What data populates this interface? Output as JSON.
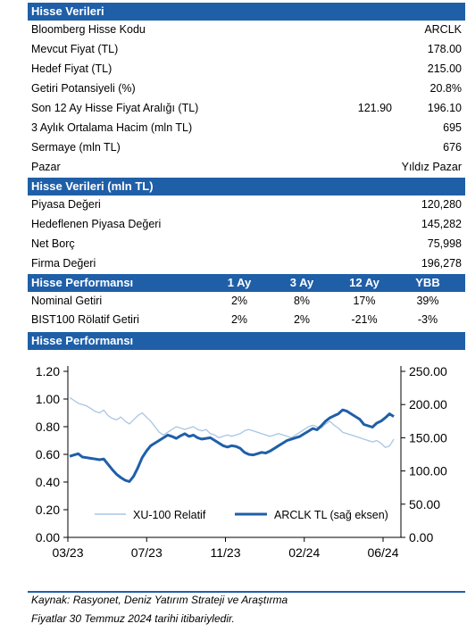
{
  "section1": {
    "title": "Hisse Verileri",
    "rows": [
      {
        "label": "Bloomberg Hisse Kodu",
        "value": "ARCLK"
      },
      {
        "label": "Mevcut Fiyat (TL)",
        "value": "178.00"
      },
      {
        "label": "Hedef Fiyat (TL)",
        "value": "215.00"
      },
      {
        "label": "Getiri Potansiyeli (%)",
        "value": "20.8%"
      },
      {
        "label": "Son 12 Ay Hisse Fiyat Aralığı (TL)",
        "low": "121.90",
        "value": "196.10"
      },
      {
        "label": "3 Aylık Ortalama Hacim (mln TL)",
        "value": "695"
      },
      {
        "label": "Sermaye (mln TL)",
        "value": "676"
      },
      {
        "label": "Pazar",
        "value": "Yıldız Pazar"
      }
    ]
  },
  "section2": {
    "title": "Hisse Verileri (mln TL)",
    "rows": [
      {
        "label": "Piyasa Değeri",
        "value": "120,280"
      },
      {
        "label": "Hedeflenen Piyasa Değeri",
        "value": "145,282"
      },
      {
        "label": "Net Borç",
        "value": "75,998"
      },
      {
        "label": "Firma Değeri",
        "value": "196,278"
      }
    ]
  },
  "section3": {
    "title": "Hisse Performansı",
    "columns": [
      "1 Ay",
      "3 Ay",
      "12 Ay",
      "YBB"
    ],
    "rows": [
      {
        "label": "Nominal Getiri",
        "values": [
          "2%",
          "8%",
          "17%",
          "39%"
        ]
      },
      {
        "label": "BIST100 Rölatif Getiri",
        "values": [
          "2%",
          "2%",
          "-21%",
          "-3%"
        ]
      }
    ]
  },
  "section4": {
    "title": "Hisse Performansı"
  },
  "source": {
    "line1": "Kaynak: Rasyonet, Deniz Yatırım Strateji ve Araştırma",
    "line2": "Fiyatlar 30 Temmuz 2024 tarihi itibariyledir."
  },
  "colors": {
    "header": "#1f5fa8",
    "relative_line": "#a9c6e3",
    "price_line": "#1f5fa8"
  },
  "chart_data": {
    "type": "line",
    "x_tick_labels": [
      "03/23",
      "07/23",
      "11/23",
      "02/24",
      "06/24"
    ],
    "y_left_ticks": [
      "0.00",
      "0.20",
      "0.40",
      "0.60",
      "0.80",
      "1.00",
      "1.20"
    ],
    "y_right_ticks": [
      "0.00",
      "50.00",
      "100.00",
      "150.00",
      "200.00",
      "250.00"
    ],
    "ylim_left": [
      0,
      1.2
    ],
    "ylim_right": [
      0,
      250
    ],
    "legend_position": "bottom",
    "series": [
      {
        "name": "XU-100 Relatif",
        "axis": "left",
        "color": "#a9c6e3",
        "values": [
          1.01,
          0.99,
          0.97,
          0.96,
          0.95,
          0.93,
          0.91,
          0.9,
          0.92,
          0.88,
          0.86,
          0.85,
          0.87,
          0.84,
          0.82,
          0.85,
          0.88,
          0.9,
          0.87,
          0.84,
          0.8,
          0.76,
          0.74,
          0.76,
          0.78,
          0.8,
          0.79,
          0.78,
          0.79,
          0.8,
          0.78,
          0.77,
          0.78,
          0.75,
          0.74,
          0.72,
          0.73,
          0.74,
          0.73,
          0.74,
          0.75,
          0.77,
          0.78,
          0.77,
          0.76,
          0.75,
          0.74,
          0.73,
          0.74,
          0.75,
          0.74,
          0.73,
          0.72,
          0.74,
          0.76,
          0.78,
          0.8,
          0.81,
          0.8,
          0.79,
          0.82,
          0.84,
          0.81,
          0.79,
          0.76,
          0.75,
          0.74,
          0.73,
          0.72,
          0.71,
          0.7,
          0.69,
          0.7,
          0.68,
          0.65,
          0.66,
          0.71
        ]
      },
      {
        "name": "ARCLK TL (sağ eksen)",
        "axis": "right",
        "color": "#1f5fa8",
        "values": [
          122,
          124,
          126,
          121,
          120,
          119,
          118,
          117,
          118,
          110,
          102,
          95,
          90,
          86,
          84,
          92,
          105,
          120,
          130,
          138,
          142,
          146,
          150,
          154,
          152,
          149,
          153,
          156,
          152,
          154,
          150,
          148,
          149,
          150,
          146,
          142,
          138,
          136,
          138,
          137,
          134,
          128,
          125,
          124,
          126,
          128,
          127,
          130,
          134,
          138,
          142,
          146,
          148,
          150,
          152,
          156,
          160,
          164,
          162,
          168,
          175,
          180,
          183,
          186,
          192,
          190,
          186,
          182,
          178,
          170,
          168,
          166,
          172,
          175,
          180,
          186,
          182
        ]
      }
    ]
  }
}
